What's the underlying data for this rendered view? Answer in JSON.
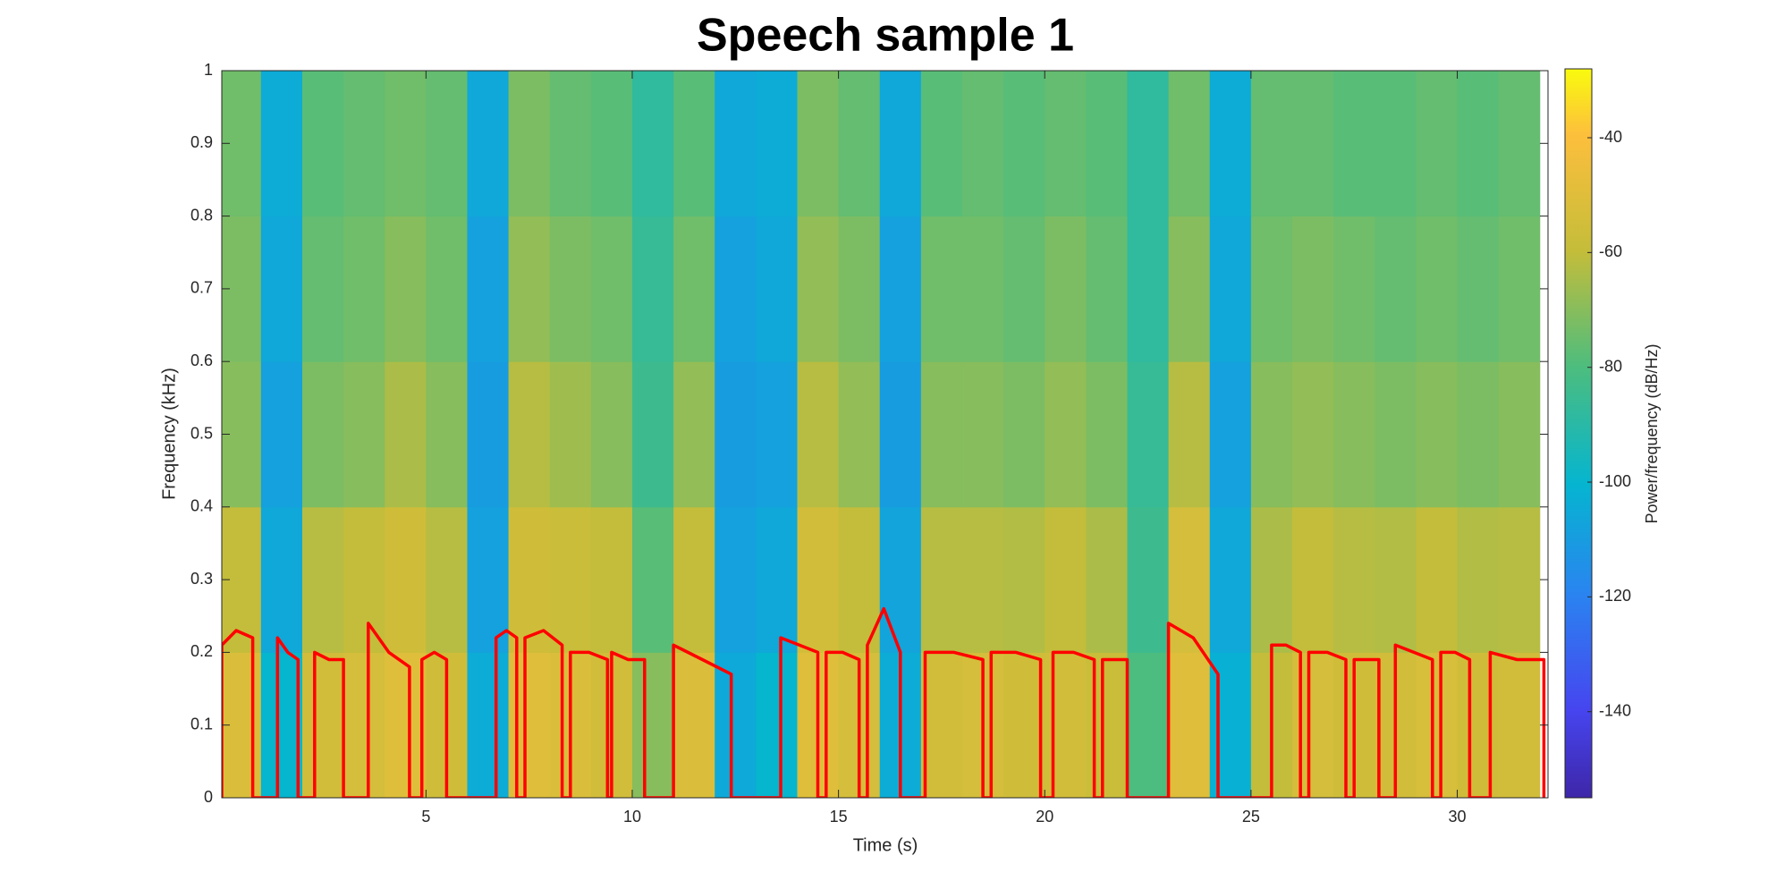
{
  "chart_data": {
    "type": "spectrogram",
    "title": "Speech sample 1",
    "xlabel": "Time (s)",
    "ylabel": "Frequency (kHz)",
    "colorbar_label": "Power/frequency (dB/Hz)",
    "colormap": "parula",
    "xlim": [
      0.05,
      32.2
    ],
    "xticks": [
      5,
      10,
      15,
      20,
      25,
      30
    ],
    "ylim": [
      0,
      1
    ],
    "yticks": [
      0,
      0.1,
      0.2,
      0.3,
      0.4,
      0.5,
      0.6,
      0.7,
      0.8,
      0.9,
      1
    ],
    "clim": [
      -155,
      -28
    ],
    "cticks": [
      -140,
      -120,
      -100,
      -80,
      -60,
      -40
    ],
    "t_bins": [
      0,
      1,
      2,
      3,
      4,
      5,
      6,
      7,
      8,
      9,
      10,
      11,
      12,
      13,
      14,
      15,
      16,
      17,
      18,
      19,
      20,
      21,
      22,
      23,
      24,
      25,
      26,
      27,
      28,
      29,
      30,
      31,
      32
    ],
    "f_bins": [
      0,
      0.2,
      0.4,
      0.6,
      0.8,
      1
    ],
    "z": [
      [
        -52,
        -100,
        -55,
        -54,
        -50,
        -56,
        -104,
        -50,
        -52,
        -55,
        -70,
        -52,
        -105,
        -100,
        -50,
        -54,
        -104,
        -55,
        -54,
        -56,
        -55,
        -58,
        -80,
        -50,
        -102,
        -60,
        -54,
        -56,
        -55,
        -53,
        -56,
        -55
      ],
      [
        -60,
        -106,
        -62,
        -60,
        -56,
        -62,
        -108,
        -56,
        -58,
        -60,
        -78,
        -60,
        -108,
        -106,
        -55,
        -60,
        -107,
        -62,
        -62,
        -63,
        -60,
        -64,
        -84,
        -54,
        -106,
        -64,
        -60,
        -62,
        -63,
        -60,
        -63,
        -62
      ],
      [
        -70,
        -108,
        -72,
        -70,
        -64,
        -70,
        -110,
        -62,
        -66,
        -70,
        -84,
        -68,
        -110,
        -108,
        -62,
        -68,
        -110,
        -70,
        -70,
        -72,
        -68,
        -72,
        -86,
        -62,
        -108,
        -70,
        -68,
        -70,
        -72,
        -70,
        -72,
        -70
      ],
      [
        -72,
        -106,
        -76,
        -74,
        -70,
        -74,
        -108,
        -68,
        -72,
        -74,
        -86,
        -74,
        -108,
        -106,
        -68,
        -72,
        -108,
        -74,
        -74,
        -76,
        -72,
        -76,
        -88,
        -70,
        -106,
        -74,
        -72,
        -74,
        -76,
        -74,
        -76,
        -74
      ],
      [
        -74,
        -104,
        -78,
        -76,
        -74,
        -76,
        -106,
        -72,
        -76,
        -78,
        -88,
        -78,
        -106,
        -104,
        -72,
        -76,
        -106,
        -78,
        -76,
        -78,
        -76,
        -78,
        -88,
        -74,
        -104,
        -76,
        -76,
        -78,
        -78,
        -76,
        -78,
        -76
      ]
    ],
    "pitch": {
      "color": "#ff0000",
      "x": [
        0.05,
        0.05,
        0.4,
        0.8,
        0.8,
        1.4,
        1.4,
        1.65,
        1.9,
        1.9,
        2.3,
        2.3,
        2.65,
        3.0,
        3.0,
        3.6,
        3.6,
        4.1,
        4.6,
        4.6,
        4.9,
        4.9,
        5.2,
        5.5,
        5.5,
        6.7,
        6.7,
        6.95,
        7.2,
        7.2,
        7.4,
        7.4,
        7.85,
        8.3,
        8.3,
        8.5,
        8.5,
        8.95,
        9.4,
        9.4,
        9.5,
        9.5,
        9.9,
        10.3,
        10.3,
        11.0,
        11.0,
        11.7,
        12.4,
        12.4,
        13.6,
        13.6,
        14.05,
        14.5,
        14.5,
        14.7,
        14.7,
        15.1,
        15.5,
        15.5,
        15.7,
        15.7,
        16.1,
        16.5,
        16.5,
        17.1,
        17.1,
        17.8,
        18.5,
        18.5,
        18.7,
        18.7,
        19.3,
        19.9,
        19.9,
        20.2,
        20.2,
        20.7,
        21.2,
        21.2,
        21.4,
        21.4,
        21.7,
        22.0,
        22.0,
        23.0,
        23.0,
        23.6,
        24.2,
        24.2,
        25.5,
        25.5,
        25.85,
        26.2,
        26.2,
        26.4,
        26.4,
        26.85,
        27.3,
        27.3,
        27.5,
        27.5,
        27.8,
        28.1,
        28.1,
        28.5,
        28.5,
        28.95,
        29.4,
        29.4,
        29.6,
        29.6,
        29.95,
        30.3,
        30.3,
        30.8,
        30.8,
        31.45,
        32.1,
        32.1
      ],
      "values": [
        0,
        0.21,
        0.23,
        0.22,
        0,
        0,
        0.22,
        0.2,
        0.19,
        0,
        0,
        0.2,
        0.19,
        0.19,
        0,
        0,
        0.24,
        0.2,
        0.18,
        0,
        0,
        0.19,
        0.2,
        0.19,
        0,
        0,
        0.22,
        0.23,
        0.22,
        0,
        0,
        0.22,
        0.23,
        0.21,
        0,
        0,
        0.2,
        0.2,
        0.19,
        0,
        0,
        0.2,
        0.19,
        0.19,
        0,
        0,
        0.21,
        0.19,
        0.17,
        0,
        0,
        0.22,
        0.21,
        0.2,
        0,
        0,
        0.2,
        0.2,
        0.19,
        0,
        0,
        0.21,
        0.26,
        0.2,
        0,
        0,
        0.2,
        0.2,
        0.19,
        0,
        0,
        0.2,
        0.2,
        0.19,
        0,
        0,
        0.2,
        0.2,
        0.19,
        0,
        0,
        0.19,
        0.19,
        0.19,
        0,
        0,
        0.24,
        0.22,
        0.17,
        0,
        0,
        0.21,
        0.21,
        0.2,
        0,
        0,
        0.2,
        0.2,
        0.19,
        0,
        0,
        0.19,
        0.19,
        0.19,
        0,
        0,
        0.21,
        0.2,
        0.19,
        0,
        0,
        0.2,
        0.2,
        0.19,
        0,
        0,
        0.2,
        0.19,
        0.19,
        0
      ]
    }
  }
}
